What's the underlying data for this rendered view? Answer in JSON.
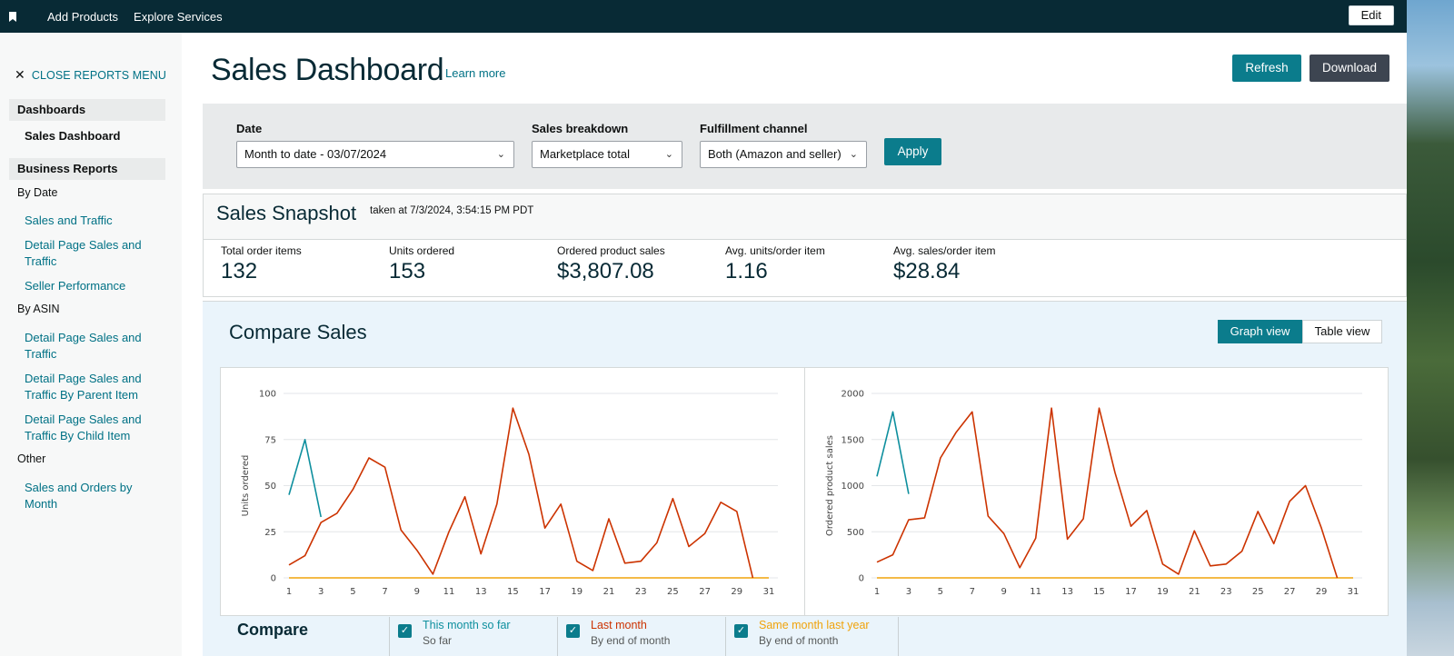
{
  "topbar": {
    "links": [
      "Add Products",
      "Explore Services"
    ],
    "edit_label": "Edit"
  },
  "sidebar": {
    "close_label": "CLOSE REPORTS MENU",
    "sections": [
      {
        "title": "Dashboards"
      },
      {
        "title": "Business Reports"
      }
    ],
    "active_item": "Sales Dashboard",
    "groups": [
      "By Date",
      "By ASIN",
      "Other"
    ],
    "links": [
      "Sales and Traffic",
      "Detail Page Sales and Traffic",
      "Seller Performance",
      "Detail Page Sales and Traffic",
      "Detail Page Sales and Traffic By Parent Item",
      "Detail Page Sales and Traffic By Child Item",
      "Sales and Orders by Month"
    ]
  },
  "header": {
    "title": "Sales Dashboard",
    "learn_more": "Learn more",
    "refresh_label": "Refresh",
    "download_label": "Download"
  },
  "filters": {
    "date_label": "Date",
    "date_value": "Month to date - 03/07/2024",
    "breakdown_label": "Sales breakdown",
    "breakdown_value": "Marketplace total",
    "channel_label": "Fulfillment channel",
    "channel_value": "Both (Amazon and seller)",
    "apply_label": "Apply"
  },
  "snapshot": {
    "title": "Sales Snapshot",
    "taken": "taken at 7/3/2024, 3:54:15 PM PDT",
    "metrics": [
      {
        "label": "Total order items",
        "value": "132"
      },
      {
        "label": "Units ordered",
        "value": "153"
      },
      {
        "label": "Ordered product sales",
        "value": "$3,807.08"
      },
      {
        "label": "Avg. units/order item",
        "value": "1.16"
      },
      {
        "label": "Avg. sales/order item",
        "value": "$28.84"
      }
    ]
  },
  "compare": {
    "title": "Compare Sales",
    "graph_view": "Graph view",
    "table_view": "Table view",
    "compare_label": "Compare",
    "legend": [
      {
        "name": "This month so far",
        "sub": "So far",
        "color": "#0e8f9e"
      },
      {
        "name": "Last month",
        "sub": "By end of month",
        "color": "#cc3300"
      },
      {
        "name": "Same month last year",
        "sub": "By end of month",
        "color": "#f0a30a"
      }
    ]
  },
  "chart_data": [
    {
      "type": "line",
      "ylabel": "Units ordered",
      "ylim": [
        0,
        100
      ],
      "yticks": [
        0,
        25,
        50,
        75,
        100
      ],
      "xticks": [
        1,
        3,
        5,
        7,
        9,
        11,
        13,
        15,
        17,
        19,
        21,
        23,
        25,
        27,
        29,
        31
      ],
      "xlim": [
        1,
        31
      ],
      "series": [
        {
          "name": "This month so far",
          "color": "#0e8f9e",
          "x": [
            1,
            2,
            3
          ],
          "y": [
            45,
            75,
            33
          ]
        },
        {
          "name": "Last month",
          "color": "#cc3300",
          "x": [
            1,
            2,
            3,
            4,
            5,
            6,
            7,
            8,
            9,
            10,
            11,
            12,
            13,
            14,
            15,
            16,
            17,
            18,
            19,
            20,
            21,
            22,
            23,
            24,
            25,
            26,
            27,
            28,
            29,
            30
          ],
          "y": [
            7,
            12,
            30,
            35,
            48,
            65,
            60,
            26,
            15,
            2,
            25,
            44,
            13,
            40,
            92,
            67,
            27,
            40,
            9,
            4,
            32,
            8,
            9,
            19,
            43,
            17,
            24,
            41,
            36,
            0
          ]
        },
        {
          "name": "Same month last year",
          "color": "#f0a30a",
          "x": [
            1,
            31
          ],
          "y": [
            0,
            0
          ]
        }
      ]
    },
    {
      "type": "line",
      "ylabel": "Ordered product sales",
      "ylim": [
        0,
        2000
      ],
      "yticks": [
        0,
        500,
        1000,
        1500,
        2000
      ],
      "xticks": [
        1,
        3,
        5,
        7,
        9,
        11,
        13,
        15,
        17,
        19,
        21,
        23,
        25,
        27,
        29,
        31
      ],
      "xlim": [
        1,
        31
      ],
      "series": [
        {
          "name": "This month so far",
          "color": "#0e8f9e",
          "x": [
            1,
            2,
            3
          ],
          "y": [
            1100,
            1800,
            910
          ]
        },
        {
          "name": "Last month",
          "color": "#cc3300",
          "x": [
            1,
            2,
            3,
            4,
            5,
            6,
            7,
            8,
            9,
            10,
            11,
            12,
            13,
            14,
            15,
            16,
            17,
            18,
            19,
            20,
            21,
            22,
            23,
            24,
            25,
            26,
            27,
            28,
            29,
            30
          ],
          "y": [
            170,
            250,
            630,
            650,
            1300,
            1580,
            1800,
            670,
            480,
            110,
            430,
            1840,
            420,
            640,
            1840,
            1140,
            560,
            730,
            150,
            40,
            510,
            130,
            150,
            290,
            720,
            370,
            830,
            1000,
            540,
            0
          ]
        },
        {
          "name": "Same month last year",
          "color": "#f0a30a",
          "x": [
            1,
            31
          ],
          "y": [
            0,
            0
          ]
        }
      ]
    }
  ]
}
